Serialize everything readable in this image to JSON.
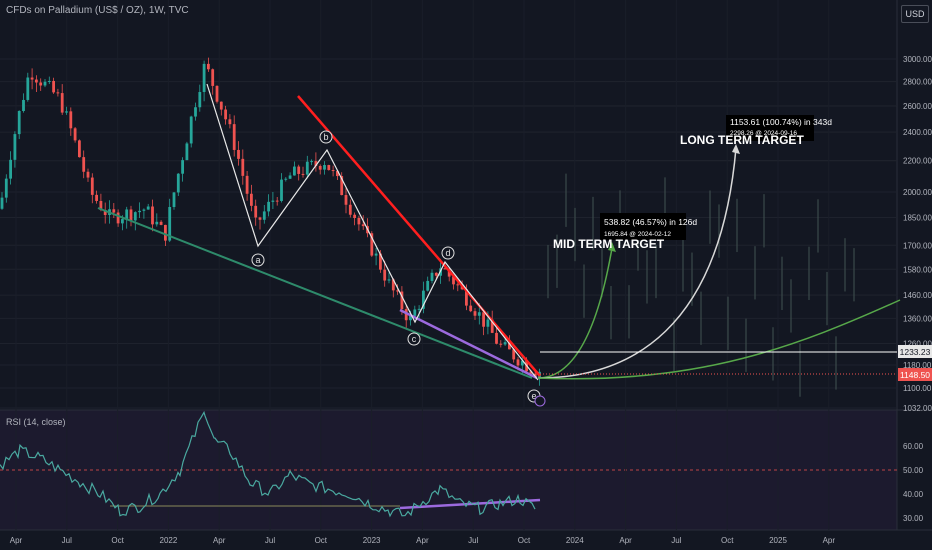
{
  "title": "CFDs on Palladium (US$ / OZ), 1W, TVC",
  "currency": "USD",
  "indicator_label": "RSI (14, close)",
  "chart_data": {
    "type": "candlestick",
    "price_axis": {
      "ticks": [
        "3000.00",
        "2800.00",
        "2600.00",
        "2400.00",
        "2200.00",
        "2000.00",
        "1850.00",
        "1700.00",
        "1580.00",
        "1460.00",
        "1360.00",
        "1260.00",
        "1180.00",
        "1100.00",
        "1032.00"
      ],
      "scale": "log",
      "range": [
        1032,
        3300
      ]
    },
    "rsi_axis": {
      "ticks": [
        "60.00",
        "50.00",
        "40.00",
        "30.00"
      ],
      "range": [
        25,
        75
      ]
    },
    "time_axis": [
      "Apr",
      "Jul",
      "Oct",
      "2022",
      "Apr",
      "Jul",
      "Oct",
      "2023",
      "Apr",
      "Jul",
      "Oct",
      "2024",
      "Apr",
      "Jul",
      "Oct",
      "2025",
      "Apr"
    ],
    "price_labels": {
      "current": "1233.23",
      "last": "1148.50"
    },
    "waves": [
      "a",
      "b",
      "c",
      "d",
      "e"
    ],
    "annotations": {
      "mid_target": "MID TERM TARGET",
      "mid_measure_1": "538.82 (46.57%) in 126d",
      "mid_measure_2": "1695.84 @ 2024-02-12",
      "long_target": "LONG TERM TARGET",
      "long_measure_1": "1153.61 (100.74%) in 343d",
      "long_measure_2": "2298.26 @ 2024-09-16"
    },
    "colors": {
      "up": "#26a69a",
      "down": "#ef5350",
      "resistance": "#ff1f1f",
      "support": "#2e8b6b",
      "divergence": "#9c6ade",
      "rsi": "#4aa9a0",
      "mid_projection": "#57a84a",
      "long_projection": "#d8d8d8"
    }
  }
}
